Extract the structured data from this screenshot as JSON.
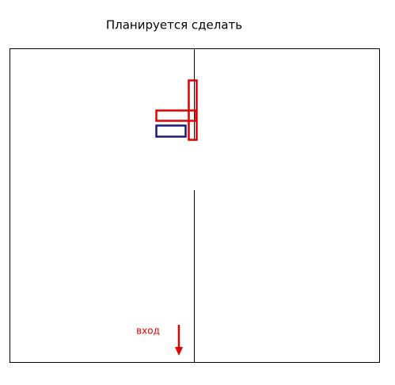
{
  "header": {
    "title": "Планируется сделать"
  },
  "labels": {
    "entrance": "вход"
  }
}
